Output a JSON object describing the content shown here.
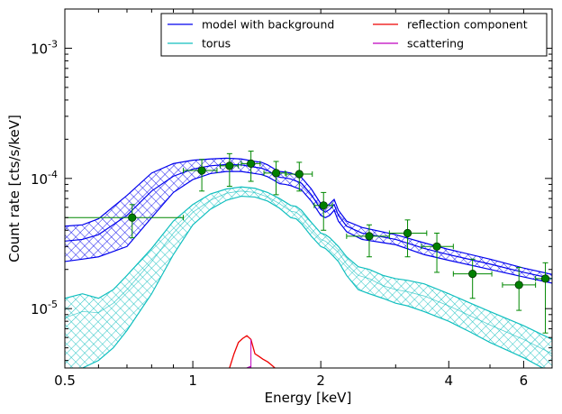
{
  "chart_data": {
    "type": "line",
    "xlabel": "Energy [keV]",
    "ylabel": "Count rate [cts/s/keV]",
    "xscale": "log",
    "yscale": "log",
    "xlim": [
      0.5,
      7.0
    ],
    "ylim": [
      3.5e-06,
      0.002
    ],
    "x_ticks": [
      {
        "value": 0.5,
        "label": "0.5"
      },
      {
        "value": 1,
        "label": "1"
      },
      {
        "value": 2,
        "label": "2"
      },
      {
        "value": 4,
        "label": "4"
      },
      {
        "value": 6,
        "label": "6"
      }
    ],
    "y_ticks": [
      {
        "value": 1e-05,
        "mant": "10",
        "exp": "-5"
      },
      {
        "value": 0.0001,
        "mant": "10",
        "exp": "-4"
      },
      {
        "value": 0.001,
        "mant": "10",
        "exp": "-3"
      }
    ],
    "legend": {
      "position": "top-right",
      "columns": 2,
      "entries": [
        {
          "label": "model with background",
          "color": "#0000ee"
        },
        {
          "label": "reflection component",
          "color": "#ee0000"
        },
        {
          "label": "torus",
          "color": "#10bfbf"
        },
        {
          "label": "scattering",
          "color": "#bf00bf"
        }
      ]
    },
    "series": [
      {
        "key": "model",
        "color": "#0000ee",
        "x": [
          0.5,
          0.55,
          0.6,
          0.7,
          0.8,
          0.9,
          1.0,
          1.1,
          1.2,
          1.3,
          1.4,
          1.45,
          1.5,
          1.55,
          1.6,
          1.65,
          1.7,
          1.8,
          1.9,
          2.0,
          2.05,
          2.1,
          2.15,
          2.2,
          2.3,
          2.5,
          3.0,
          3.5,
          4.0,
          5.0,
          6.0,
          7.0
        ],
        "y": [
          3.3e-05,
          3.4e-05,
          3.7e-05,
          5.2e-05,
          8e-05,
          0.000104,
          0.000118,
          0.000125,
          0.000128,
          0.000127,
          0.000122,
          0.00012,
          0.000115,
          0.000108,
          0.000102,
          0.000101,
          9.9e-05,
          9.2e-05,
          7.5e-05,
          5.8e-05,
          5.5e-05,
          5.8e-05,
          6.3e-05,
          5.2e-05,
          4.3e-05,
          3.8e-05,
          3.4e-05,
          2.9e-05,
          2.6e-05,
          2.2e-05,
          1.9e-05,
          1.7e-05
        ],
        "band": [
          1e-05,
          1e-05,
          1.2e-05,
          2.2e-05,
          3e-05,
          2.6e-05,
          2e-05,
          1.6e-05,
          1.5e-05,
          1.4e-05,
          1.3e-05,
          1.3e-05,
          1.2e-05,
          1.1e-05,
          1.1e-05,
          1.1e-05,
          1.1e-05,
          1e-05,
          8e-06,
          6e-06,
          5e-06,
          6e-06,
          6e-06,
          5e-06,
          4e-06,
          4e-06,
          3e-06,
          3e-06,
          2.5e-06,
          2e-06,
          1.5e-06,
          1.3e-06
        ]
      },
      {
        "key": "torus",
        "color": "#10bfbf",
        "x": [
          0.5,
          0.55,
          0.6,
          0.65,
          0.7,
          0.8,
          0.9,
          1.0,
          1.1,
          1.2,
          1.3,
          1.4,
          1.5,
          1.6,
          1.7,
          1.75,
          1.8,
          1.9,
          2.0,
          2.05,
          2.1,
          2.2,
          2.3,
          2.45,
          2.6,
          2.8,
          3.0,
          3.2,
          3.5,
          4.0,
          4.5,
          5.0,
          6.0,
          7.0
        ],
        "y": [
          8.5e-06,
          9.5e-06,
          9.3e-06,
          1.1e-05,
          1.4e-05,
          2.3e-05,
          3.8e-05,
          5.5e-05,
          6.8e-05,
          7.7e-05,
          8e-05,
          7.8e-05,
          7.2e-05,
          6.4e-05,
          5.6e-05,
          5.5e-05,
          5.1e-05,
          4.1e-05,
          3.4e-05,
          3.3e-05,
          3.1e-05,
          2.7e-05,
          2.2e-05,
          1.8e-05,
          1.7e-05,
          1.5e-05,
          1.4e-05,
          1.35e-05,
          1.25e-05,
          1.05e-05,
          8.8e-06,
          7.5e-06,
          5.8e-06,
          4.5e-06
        ],
        "band_lo": [
          3e-06,
          3.5e-06,
          4e-06,
          5e-06,
          6.8e-06,
          1.3e-05,
          2.6e-05,
          4.4e-05,
          5.8e-05,
          6.8e-05,
          7.3e-05,
          7.2e-05,
          6.7e-05,
          5.9e-05,
          5e-05,
          4.9e-05,
          4.5e-05,
          3.6e-05,
          3e-05,
          2.9e-05,
          2.7e-05,
          2.3e-05,
          1.8e-05,
          1.4e-05,
          1.3e-05,
          1.2e-05,
          1.1e-05,
          1.05e-05,
          9.5e-06,
          8e-06,
          6.6e-06,
          5.5e-06,
          4.2e-06,
          3.2e-06
        ],
        "band_hi": [
          1.2e-05,
          1.3e-05,
          1.2e-05,
          1.4e-05,
          1.8e-05,
          2.9e-05,
          4.7e-05,
          6.3e-05,
          7.6e-05,
          8.3e-05,
          8.6e-05,
          8.4e-05,
          7.8e-05,
          7e-05,
          6.2e-05,
          6.1e-05,
          5.7e-05,
          4.6e-05,
          3.8e-05,
          3.7e-05,
          3.5e-05,
          3e-05,
          2.5e-05,
          2.1e-05,
          2e-05,
          1.8e-05,
          1.7e-05,
          1.65e-05,
          1.55e-05,
          1.3e-05,
          1.1e-05,
          9.5e-06,
          7.4e-06,
          5.8e-06
        ]
      },
      {
        "key": "reflection",
        "color": "#ee0000",
        "x": [
          1.22,
          1.25,
          1.28,
          1.31,
          1.34,
          1.37,
          1.4,
          1.43,
          1.46,
          1.5,
          1.53,
          1.56
        ],
        "y": [
          3.5e-06,
          4.5e-06,
          5.5e-06,
          5.9e-06,
          6.2e-06,
          5.8e-06,
          4.5e-06,
          4.3e-06,
          4.1e-06,
          3.9e-06,
          3.7e-06,
          3.5e-06
        ]
      },
      {
        "key": "scattering",
        "color": "#bf00bf",
        "x": [
          1.34,
          1.37
        ],
        "y": [
          3.5e-06,
          3.6e-06
        ]
      }
    ],
    "data_points": {
      "color": "#008800",
      "points": [
        {
          "x": 0.72,
          "y": 5e-05,
          "xerr": [
            0.22,
            0.23
          ],
          "yerr": [
            1.5e-05,
            1.3e-05
          ]
        },
        {
          "x": 1.05,
          "y": 0.000115,
          "xerr": [
            0.1,
            0.09
          ],
          "yerr": [
            3.5e-05,
            2.5e-05
          ]
        },
        {
          "x": 1.22,
          "y": 0.000125,
          "xerr": [
            0.06,
            0.06
          ],
          "yerr": [
            3.8e-05,
            3e-05
          ]
        },
        {
          "x": 1.37,
          "y": 0.00013,
          "xerr": [
            0.07,
            0.07
          ],
          "yerr": [
            3.5e-05,
            3.2e-05
          ]
        },
        {
          "x": 1.57,
          "y": 0.00011,
          "xerr": [
            0.1,
            0.08
          ],
          "yerr": [
            3.5e-05,
            2.5e-05
          ]
        },
        {
          "x": 1.78,
          "y": 0.000108,
          "xerr": [
            0.12,
            0.13
          ],
          "yerr": [
            2.8e-05,
            2.5e-05
          ]
        },
        {
          "x": 2.03,
          "y": 6.2e-05,
          "xerr": [
            0.1,
            0.1
          ],
          "yerr": [
            2.2e-05,
            1.6e-05
          ]
        },
        {
          "x": 2.6,
          "y": 3.6e-05,
          "xerr": [
            0.3,
            0.3
          ],
          "yerr": [
            1.1e-05,
            8e-06
          ]
        },
        {
          "x": 3.2,
          "y": 3.8e-05,
          "xerr": [
            0.3,
            0.35
          ],
          "yerr": [
            1.3e-05,
            1e-05
          ]
        },
        {
          "x": 3.75,
          "y": 3e-05,
          "xerr": [
            0.3,
            0.35
          ],
          "yerr": [
            1.1e-05,
            8e-06
          ]
        },
        {
          "x": 4.55,
          "y": 1.85e-05,
          "xerr": [
            0.45,
            0.5
          ],
          "yerr": [
            6.5e-06,
            5.5e-06
          ]
        },
        {
          "x": 5.85,
          "y": 1.52e-05,
          "xerr": [
            0.5,
            0.55
          ],
          "yerr": [
            5.5e-06,
            5.5e-06
          ]
        },
        {
          "x": 6.75,
          "y": 1.7e-05,
          "xerr": [
            0.35,
            0.25
          ],
          "yerr": [
            1.05e-05,
            5.5e-06
          ]
        }
      ]
    }
  }
}
